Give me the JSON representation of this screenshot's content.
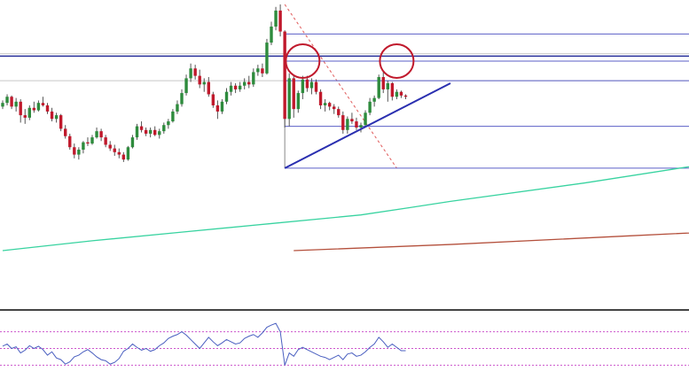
{
  "chart_data": {
    "type": "candlestick",
    "title": "",
    "xlabel": "",
    "ylabel": "",
    "grid": false,
    "legend": "none",
    "ylim": [
      0,
      100
    ],
    "colors": {
      "bull": "#2e8b3d",
      "bear": "#c0192c",
      "wick": "#555555",
      "sma_fast": "#38d3a0",
      "sma_slow": "#b4503c",
      "resistance": "#28309a",
      "fib_levels": "#5b5fc7",
      "horizontal_gray": "#c8c8c8",
      "trendline": "#2a2fb0",
      "highlight_circle": "#c0192c",
      "fib_diagonal": "#e05a5a",
      "rsi_line": "#4a5fc0",
      "rsi_levels": "#cc55cc"
    },
    "candles": [
      [
        58.5,
        61,
        57.5,
        60
      ],
      [
        60,
        63.5,
        59,
        62.5
      ],
      [
        62.5,
        63,
        57.5,
        58.5
      ],
      [
        58.5,
        62,
        56.5,
        60.5
      ],
      [
        60.5,
        61.5,
        52,
        55
      ],
      [
        55,
        57.5,
        51.5,
        54
      ],
      [
        54,
        59,
        53,
        58
      ],
      [
        58,
        60.5,
        56,
        57
      ],
      [
        57,
        61,
        56.5,
        60
      ],
      [
        60,
        62.5,
        58.5,
        59
      ],
      [
        59,
        60,
        55.5,
        56.5
      ],
      [
        56.5,
        58,
        52.5,
        53.5
      ],
      [
        53.5,
        56,
        52,
        55
      ],
      [
        55,
        55.5,
        48.5,
        49.5
      ],
      [
        49.5,
        51,
        45.5,
        46.5
      ],
      [
        46.5,
        47.5,
        41,
        42
      ],
      [
        42,
        43.5,
        37.5,
        39
      ],
      [
        39,
        42,
        37,
        41
      ],
      [
        41,
        44.5,
        39.5,
        44
      ],
      [
        44,
        46,
        42.5,
        43.5
      ],
      [
        43.5,
        47,
        43,
        46
      ],
      [
        46,
        50,
        45.5,
        48.5
      ],
      [
        48.5,
        49.5,
        44.5,
        46
      ],
      [
        46,
        47,
        42,
        43
      ],
      [
        43,
        44.5,
        40.5,
        41.5
      ],
      [
        41.5,
        43,
        38.5,
        40
      ],
      [
        40,
        41.5,
        37.5,
        39
      ],
      [
        39,
        40,
        36,
        37
      ],
      [
        37,
        42.5,
        36.5,
        42
      ],
      [
        42,
        47,
        41.5,
        46
      ],
      [
        46,
        51.5,
        45,
        50.5
      ],
      [
        50.5,
        52.5,
        48,
        49
      ],
      [
        49,
        50,
        46.5,
        47.5
      ],
      [
        47.5,
        50,
        46,
        49
      ],
      [
        49,
        50.5,
        46.5,
        47
      ],
      [
        47,
        49.5,
        45.5,
        48.5
      ],
      [
        48.5,
        52,
        47.5,
        51
      ],
      [
        51,
        53.5,
        49.5,
        52.5
      ],
      [
        52.5,
        57.5,
        52,
        56.5
      ],
      [
        56.5,
        61,
        55.5,
        59.5
      ],
      [
        59.5,
        65.5,
        58.5,
        64
      ],
      [
        64,
        71.5,
        63,
        70
      ],
      [
        70,
        76,
        68.5,
        74
      ],
      [
        74,
        75.5,
        69.5,
        71
      ],
      [
        71,
        73.5,
        66,
        67.5
      ],
      [
        67.5,
        70,
        64.5,
        68.5
      ],
      [
        68.5,
        70.5,
        62.5,
        63.5
      ],
      [
        63.5,
        64.5,
        58,
        59
      ],
      [
        59,
        61,
        53.5,
        56.5
      ],
      [
        56.5,
        61.5,
        55.5,
        60.5
      ],
      [
        60.5,
        66,
        59.5,
        64.5
      ],
      [
        64.5,
        68.5,
        63,
        67
      ],
      [
        67,
        68,
        64,
        65.5
      ],
      [
        65.5,
        68.5,
        64.5,
        67
      ],
      [
        67,
        70,
        65.5,
        68.5
      ],
      [
        68.5,
        71,
        66,
        67.5
      ],
      [
        67.5,
        74,
        66.5,
        72.5
      ],
      [
        72.5,
        75.5,
        71,
        74
      ],
      [
        74,
        76,
        70.5,
        72
      ],
      [
        72,
        86,
        71.5,
        84.5
      ],
      [
        84.5,
        93,
        83.5,
        91
      ],
      [
        91,
        99,
        89.5,
        97.5
      ],
      [
        97.5,
        100,
        87,
        89
      ],
      [
        89,
        89.5,
        50,
        53.5
      ],
      [
        53.5,
        72,
        50.5,
        70
      ],
      [
        70,
        71.5,
        54,
        57.5
      ],
      [
        57.5,
        65,
        56,
        64
      ],
      [
        64,
        71,
        61.5,
        69.5
      ],
      [
        69.5,
        71,
        64.5,
        66
      ],
      [
        66,
        70,
        63.5,
        68.5
      ],
      [
        68.5,
        69.5,
        63.5,
        64.5
      ],
      [
        64.5,
        65.5,
        57.5,
        59
      ],
      [
        59,
        61.5,
        56.5,
        60
      ],
      [
        60,
        60.5,
        57,
        58.5
      ],
      [
        58.5,
        59.5,
        55.5,
        57.5
      ],
      [
        57.5,
        58.5,
        54,
        55
      ],
      [
        55,
        56.5,
        47.5,
        49
      ],
      [
        49,
        54.5,
        47.5,
        53.5
      ],
      [
        53.5,
        56,
        51.5,
        52.5
      ],
      [
        52.5,
        54,
        49,
        50
      ],
      [
        50,
        52,
        48,
        51
      ],
      [
        51,
        57,
        50,
        56
      ],
      [
        56,
        62,
        55,
        60.5
      ],
      [
        60.5,
        63,
        58.5,
        62
      ],
      [
        62,
        71.5,
        61.5,
        70.5
      ],
      [
        70.5,
        73,
        64,
        65.5
      ],
      [
        65.5,
        69,
        60.5,
        68
      ],
      [
        68,
        68.5,
        61,
        62.5
      ],
      [
        62.5,
        65.5,
        61.5,
        64.5
      ],
      [
        64.5,
        65,
        62,
        63
      ],
      [
        63,
        63.5,
        61.5,
        62.5
      ]
    ],
    "sma_fast": [
      [
        0,
        0
      ],
      [
        20,
        4
      ],
      [
        40,
        7.5
      ],
      [
        60,
        11
      ],
      [
        80,
        14.5
      ],
      [
        91,
        17.5
      ],
      [
        100,
        20
      ],
      [
        130,
        27.5
      ],
      [
        160,
        36
      ],
      [
        190,
        44
      ],
      [
        220,
        51
      ],
      [
        250,
        57
      ],
      [
        280,
        62.5
      ],
      [
        310,
        66.5
      ],
      [
        332,
        69
      ],
      [
        360,
        71
      ],
      [
        380,
        72.5
      ]
    ],
    "sma_slow": [
      [
        65,
        0
      ],
      [
        100,
        2.5
      ],
      [
        140,
        6
      ],
      [
        180,
        9.5
      ],
      [
        220,
        14
      ],
      [
        260,
        18.5
      ],
      [
        300,
        23
      ],
      [
        330,
        27
      ],
      [
        345,
        28.5
      ],
      [
        360,
        30.5
      ],
      [
        380,
        33
      ],
      [
        400,
        36
      ],
      [
        420,
        39.5
      ]
    ],
    "resistance_level": 79,
    "gray_levels": [
      80,
      69
    ],
    "fib_levels": [
      88,
      77,
      69,
      50.5,
      33.5
    ],
    "fib_box_left": 63,
    "trendline": [
      [
        63,
        33.5
      ],
      [
        100,
        68
      ]
    ],
    "highlight_circles": [
      [
        67,
        77
      ],
      [
        88,
        77
      ]
    ],
    "fib_diagonal": [
      [
        63,
        100
      ],
      [
        88,
        33.5
      ]
    ],
    "rsi": {
      "range": [
        0,
        100
      ],
      "levels": [
        80,
        50,
        20
      ],
      "values": [
        54,
        58,
        50,
        53,
        42,
        47,
        55,
        50,
        54,
        48,
        38,
        44,
        33,
        30,
        22,
        26,
        35,
        38,
        44,
        48,
        42,
        35,
        30,
        28,
        22,
        25,
        32,
        45,
        50,
        58,
        52,
        47,
        50,
        45,
        48,
        55,
        60,
        68,
        72,
        75,
        80,
        74,
        66,
        58,
        50,
        60,
        70,
        62,
        55,
        60,
        66,
        62,
        58,
        60,
        68,
        72,
        75,
        70,
        78,
        88,
        92,
        95,
        80,
        20,
        42,
        36,
        48,
        52,
        48,
        44,
        40,
        36,
        34,
        30,
        34,
        38,
        30,
        40,
        42,
        36,
        38,
        44,
        52,
        58,
        70,
        62,
        52,
        58,
        52,
        46,
        46
      ]
    }
  }
}
